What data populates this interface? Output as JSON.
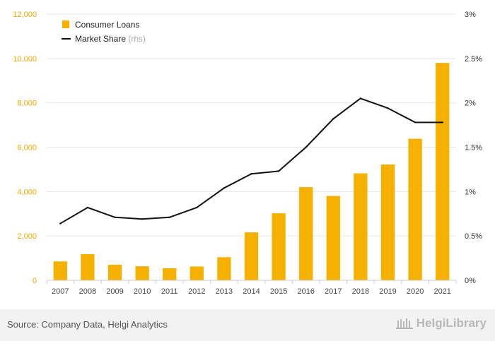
{
  "chart_data": {
    "type": "bar",
    "categories": [
      "2007",
      "2008",
      "2009",
      "2010",
      "2011",
      "2012",
      "2013",
      "2014",
      "2015",
      "2016",
      "2017",
      "2018",
      "2019",
      "2020",
      "2021"
    ],
    "series": [
      {
        "name": "Consumer Loans",
        "type": "bar",
        "axis": "left",
        "values": [
          850,
          1180,
          700,
          630,
          540,
          620,
          1040,
          2160,
          3020,
          4200,
          3800,
          4820,
          5220,
          6380,
          9800
        ]
      },
      {
        "name": "Market Share",
        "name_suffix": "(rhs)",
        "type": "line",
        "axis": "right",
        "values": [
          0.64,
          0.82,
          0.71,
          0.69,
          0.71,
          0.82,
          1.04,
          1.2,
          1.23,
          1.5,
          1.82,
          2.05,
          1.94,
          1.78,
          1.78
        ]
      }
    ],
    "y_left": {
      "ticks": [
        "0",
        "2,000",
        "4,000",
        "6,000",
        "8,000",
        "10,000",
        "12,000"
      ],
      "ylim": [
        0,
        12000
      ]
    },
    "y_right": {
      "ticks": [
        "0%",
        "0.5%",
        "1%",
        "1.5%",
        "2%",
        "2.5%",
        "3%"
      ],
      "ylim": [
        0,
        3
      ]
    },
    "grid": true,
    "legend": "top-left",
    "colors": {
      "bar": "#f5b000",
      "line": "#111111",
      "left_axis_text": "#f0a800",
      "right_axis_text": "#333333",
      "grid": "#e6e6e6"
    }
  },
  "footer": {
    "source": "Source: Company Data, Helgi Analytics",
    "brand": "HelgiLibrary"
  }
}
